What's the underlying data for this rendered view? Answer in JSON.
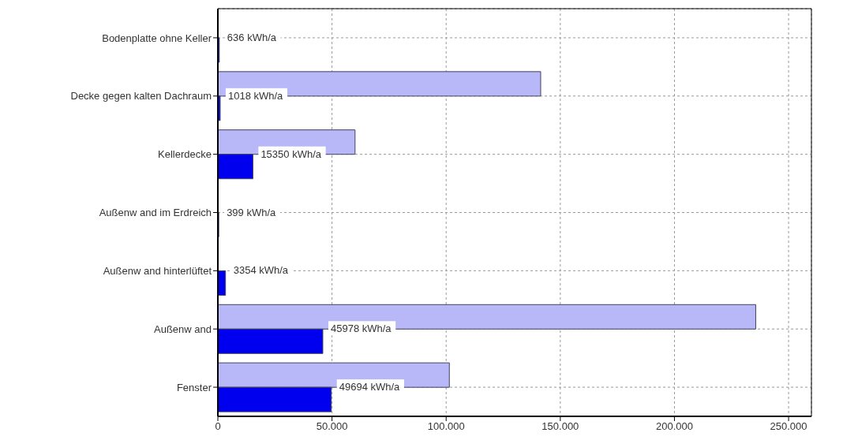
{
  "chart_data": {
    "type": "bar",
    "orientation": "horizontal",
    "categories": [
      "Bodenplatte ohne Keller",
      "Decke gegen kalten Dachraum",
      "Kellerdecke",
      "Außenw and im Erdreich",
      "Außenw and hinterlüftet",
      "Außenw and",
      "Fenster"
    ],
    "series": [
      {
        "color": "#b8b8f8",
        "values": [
          null,
          141400,
          60100,
          null,
          null,
          235600,
          101400
        ]
      },
      {
        "color": "#0000ee",
        "values": [
          636,
          1018,
          15350,
          399,
          3354,
          45978,
          49694
        ],
        "value_labels": [
          "636 kWh/a",
          "1018 kWh/a",
          "15350 kWh/a",
          "399 kWh/a",
          "3354 kWh/a",
          "45978 kWh/a",
          "49694 kWh/a"
        ]
      }
    ],
    "xlim": [
      0,
      260000
    ],
    "xticks": [
      0,
      {
        "value": 50000,
        "label": "50.000"
      },
      {
        "value": 100000,
        "label": "100.000"
      },
      {
        "value": 150000,
        "label": "150.000"
      },
      {
        "value": 200000,
        "label": "200.000"
      },
      {
        "value": 250000,
        "label": "250.000"
      }
    ],
    "grid": true
  }
}
